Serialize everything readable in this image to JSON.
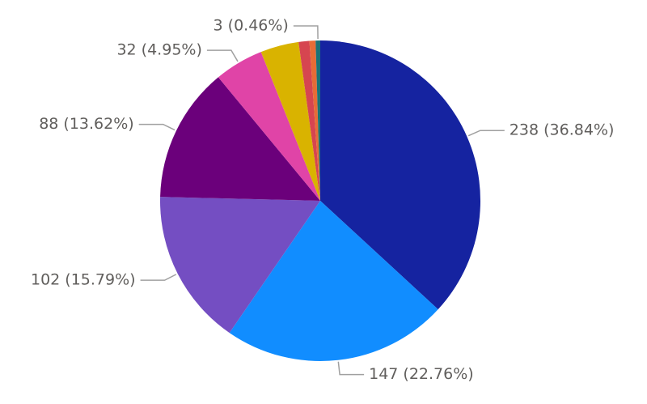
{
  "chart_data": {
    "type": "pie",
    "values": [
      238,
      147,
      102,
      88,
      32,
      25,
      7,
      4,
      3
    ],
    "value_labels": [
      "238 (36.84%)",
      "147 (22.76%)",
      "102 (15.79%)",
      "88 (13.62%)",
      "32 (4.95%)",
      null,
      null,
      null,
      "3 (0.46%)"
    ],
    "colors": [
      "#1523a0",
      "#118dff",
      "#744ec2",
      "#6b007b",
      "#e044a7",
      "#d9b300",
      "#d64550",
      "#e66c37",
      "#197278"
    ]
  }
}
